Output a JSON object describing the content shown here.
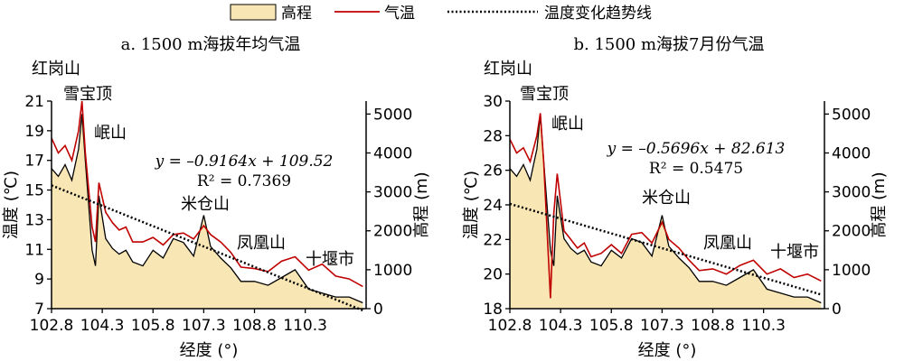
{
  "legend": {
    "elevation": "高程",
    "temperature": "气温",
    "trend": "温度变化趋势线"
  },
  "colors": {
    "elevation_fill": "#f8e6b4",
    "temperature_line": "#c00000",
    "elevation_line": "#000000",
    "trend_line": "#000000"
  },
  "chart_data": [
    {
      "type": "area",
      "title": "a. 1500 m海拔年均气温",
      "xlabel": "经度 (°)",
      "ylabel": "温度 (℃)",
      "y2label": "高程 (m)",
      "xticks": [
        "102.8",
        "104.3",
        "105.8",
        "107.3",
        "108.8",
        "110.3"
      ],
      "yticks": [
        "7",
        "9",
        "11",
        "13",
        "15",
        "17",
        "19",
        "21"
      ],
      "y2ticks": [
        "0",
        "1000",
        "2000",
        "3000",
        "4000",
        "5000"
      ],
      "xlim": [
        102.8,
        112.1
      ],
      "ylim": [
        7,
        21
      ],
      "y2lim": [
        0,
        5333
      ],
      "equation": "y = –0.9164x + 109.52",
      "r2_label": "R² = 0.7369",
      "trend": {
        "slope": -0.9164,
        "intercept": 109.52
      },
      "annotations": [
        "红岗山",
        "雪宝顶",
        "岷山",
        "米仓山",
        "凤凰山",
        "十堰市"
      ],
      "x": [
        102.8,
        103.0,
        103.2,
        103.4,
        103.6,
        103.7,
        103.8,
        104.0,
        104.1,
        104.2,
        104.4,
        104.6,
        104.8,
        105.0,
        105.2,
        105.5,
        105.8,
        106.1,
        106.4,
        106.7,
        107.0,
        107.3,
        107.5,
        107.8,
        108.1,
        108.4,
        108.8,
        109.2,
        109.6,
        110.0,
        110.4,
        110.8,
        111.2,
        111.6,
        112.0
      ],
      "series": [
        {
          "name": "气温",
          "values": [
            18.5,
            17.5,
            18.0,
            17.0,
            19.0,
            21.0,
            17.5,
            12.5,
            11.5,
            15.5,
            13.5,
            12.8,
            12.3,
            12.5,
            11.5,
            11.5,
            11.8,
            11.3,
            12.0,
            12.1,
            11.7,
            12.6,
            12.0,
            11.5,
            10.8,
            9.8,
            9.7,
            9.5,
            10.2,
            10.5,
            9.6,
            10.0,
            9.2,
            9.0,
            8.5
          ]
        },
        {
          "name": "高程",
          "values": [
            3600,
            3400,
            3700,
            3300,
            4100,
            5000,
            3800,
            1500,
            1100,
            2900,
            1800,
            1550,
            1400,
            1500,
            1200,
            1100,
            1500,
            1300,
            1800,
            1700,
            1350,
            2400,
            1600,
            1300,
            1050,
            700,
            700,
            600,
            800,
            1000,
            500,
            400,
            300,
            300,
            150
          ]
        }
      ]
    },
    {
      "type": "area",
      "title": "b. 1500 m海拔7月份气温",
      "xlabel": "经度 (°)",
      "ylabel": "温度 (℃)",
      "y2label": "高程 (m)",
      "xticks": [
        "102.8",
        "104.3",
        "105.8",
        "107.3",
        "108.8",
        "110.3"
      ],
      "yticks": [
        "18",
        "20",
        "22",
        "24",
        "26",
        "28",
        "30"
      ],
      "y2ticks": [
        "0",
        "1000",
        "2000",
        "3000",
        "4000",
        "5000"
      ],
      "xlim": [
        102.8,
        112.1
      ],
      "ylim": [
        18,
        30
      ],
      "y2lim": [
        0,
        5333
      ],
      "equation": "y = –0.5696x + 82.613",
      "r2_label": "R² = 0.5475",
      "trend": {
        "slope": -0.5696,
        "intercept": 82.613
      },
      "annotations": [
        "红岗山",
        "雪宝顶",
        "岷山",
        "米仓山",
        "凤凰山",
        "十堰市"
      ],
      "x": [
        102.8,
        103.0,
        103.2,
        103.4,
        103.6,
        103.7,
        103.8,
        104.0,
        104.1,
        104.2,
        104.4,
        104.6,
        104.8,
        105.0,
        105.2,
        105.5,
        105.8,
        106.1,
        106.4,
        106.7,
        107.0,
        107.3,
        107.5,
        107.8,
        108.1,
        108.4,
        108.8,
        109.2,
        109.6,
        110.0,
        110.4,
        110.8,
        111.2,
        111.6,
        112.0
      ],
      "series": [
        {
          "name": "气温",
          "values": [
            27.8,
            27.0,
            27.3,
            26.5,
            28.0,
            29.3,
            26.5,
            18.6,
            23.5,
            25.8,
            22.5,
            22.0,
            21.5,
            21.8,
            21.0,
            21.2,
            21.7,
            21.2,
            22.3,
            22.4,
            21.8,
            23.0,
            22.0,
            21.5,
            20.8,
            20.2,
            20.3,
            20.0,
            20.5,
            20.8,
            20.0,
            20.3,
            19.8,
            20.0,
            19.6
          ]
        },
        {
          "name": "高程",
          "values": [
            3600,
            3400,
            3700,
            3300,
            4100,
            5000,
            3800,
            1500,
            1100,
            2900,
            1800,
            1550,
            1400,
            1500,
            1200,
            1100,
            1500,
            1300,
            1800,
            1700,
            1350,
            2400,
            1600,
            1300,
            1050,
            700,
            700,
            600,
            800,
            1000,
            500,
            400,
            300,
            300,
            150
          ]
        }
      ]
    }
  ]
}
